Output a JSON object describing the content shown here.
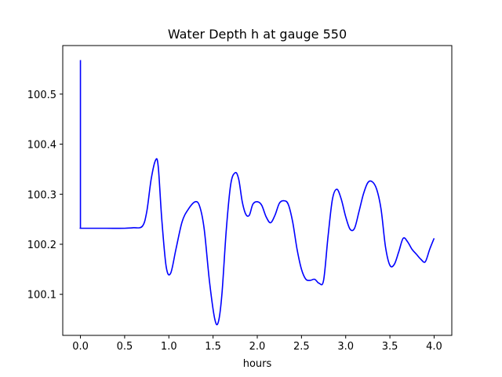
{
  "chart_data": {
    "type": "line",
    "title": "Water Depth h at gauge 550",
    "xlabel": "hours",
    "ylabel": "",
    "xlim": [
      -0.2,
      4.2
    ],
    "ylim": [
      100.018,
      100.597
    ],
    "xticks": [
      0.0,
      0.5,
      1.0,
      1.5,
      2.0,
      2.5,
      3.0,
      3.5,
      4.0
    ],
    "xtick_labels": [
      "0.0",
      "0.5",
      "1.0",
      "1.5",
      "2.0",
      "2.5",
      "3.0",
      "3.5",
      "4.0"
    ],
    "yticks": [
      100.1,
      100.2,
      100.3,
      100.4,
      100.5
    ],
    "ytick_labels": [
      "100.1",
      "100.2",
      "100.3",
      "100.4",
      "100.5"
    ],
    "grid": false,
    "legend": "none",
    "series": [
      {
        "color": "#0000ff",
        "x": [
          0.0,
          0.0,
          0.005,
          0.1,
          0.3,
          0.5,
          0.6,
          0.7,
          0.75,
          0.8,
          0.85,
          0.88,
          0.92,
          0.97,
          1.02,
          1.08,
          1.15,
          1.22,
          1.3,
          1.35,
          1.4,
          1.46,
          1.52,
          1.56,
          1.6,
          1.65,
          1.7,
          1.75,
          1.79,
          1.83,
          1.87,
          1.91,
          1.95,
          2.0,
          2.05,
          2.1,
          2.15,
          2.2,
          2.25,
          2.3,
          2.35,
          2.4,
          2.45,
          2.5,
          2.55,
          2.6,
          2.65,
          2.7,
          2.75,
          2.8,
          2.85,
          2.9,
          2.95,
          3.0,
          3.05,
          3.1,
          3.15,
          3.2,
          3.25,
          3.3,
          3.35,
          3.4,
          3.45,
          3.5,
          3.55,
          3.6,
          3.65,
          3.7,
          3.75,
          3.8,
          3.85,
          3.9,
          3.95,
          4.0
        ],
        "y": [
          100.568,
          100.232,
          100.232,
          100.232,
          100.232,
          100.232,
          100.233,
          100.236,
          100.265,
          100.33,
          100.368,
          100.355,
          100.25,
          100.155,
          100.142,
          100.19,
          100.245,
          100.27,
          100.285,
          100.275,
          100.23,
          100.125,
          100.05,
          100.045,
          100.1,
          100.23,
          100.32,
          100.343,
          100.33,
          100.285,
          100.26,
          100.258,
          100.28,
          100.285,
          100.278,
          100.255,
          100.243,
          100.258,
          100.282,
          100.287,
          100.28,
          100.245,
          100.19,
          100.15,
          100.13,
          100.128,
          100.13,
          100.122,
          100.128,
          100.215,
          100.29,
          100.31,
          100.29,
          100.255,
          100.23,
          100.232,
          100.265,
          100.3,
          100.323,
          100.325,
          100.31,
          100.27,
          100.195,
          100.158,
          100.16,
          100.185,
          100.212,
          100.205,
          100.19,
          100.18,
          100.17,
          100.165,
          100.19,
          100.212
        ]
      }
    ]
  }
}
